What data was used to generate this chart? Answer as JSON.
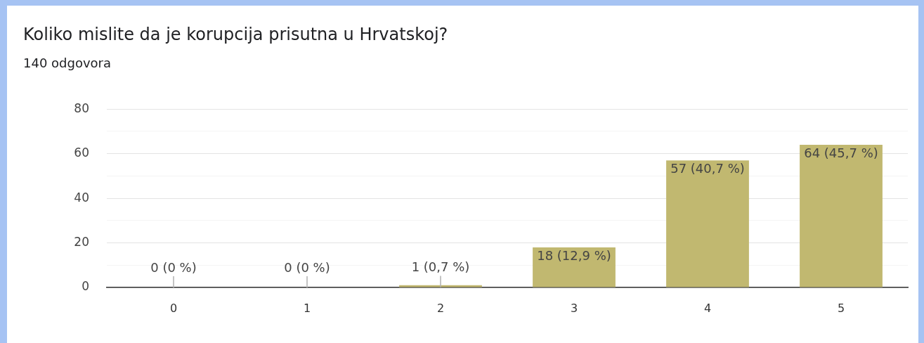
{
  "chart_data": {
    "type": "bar",
    "title": "Koliko mislite da je korupcija prisutna u Hrvatskoj?",
    "subtitle": "140 odgovora",
    "categories": [
      "0",
      "1",
      "2",
      "3",
      "4",
      "5"
    ],
    "values": [
      0,
      0,
      1,
      18,
      57,
      64
    ],
    "color": "#c1b870",
    "value_labels": [
      "0 (0 %)",
      "0 (0 %)",
      "1 (0,7 %)",
      "18 (12,9 %)",
      "57 (40,7 %)",
      "64 (45,7 %)"
    ],
    "ylim": [
      0,
      80
    ],
    "yticks": [
      0,
      {
        "value": 10,
        "label": null
      },
      20,
      {
        "value": 30,
        "label": null
      },
      40,
      {
        "value": 50,
        "label": null
      },
      60,
      {
        "value": 70,
        "label": null
      },
      80
    ],
    "grid": "y"
  }
}
